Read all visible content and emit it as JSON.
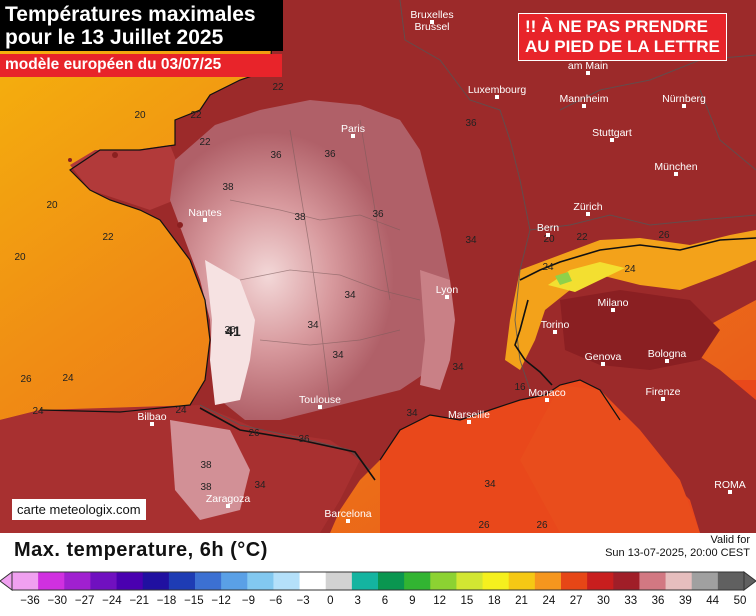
{
  "title_line1": "Températures maximales",
  "title_line2": "pour le 13 Juillet 2025",
  "subtitle": "modèle européen du 03/07/25",
  "warning_line1": "!! À NE PAS PRENDRE",
  "warning_line2": "AU PIED DE LA LETTRE",
  "credit": "carte meteologix.com",
  "legend_title": "Max. temperature, 6h (°C)",
  "valid_label": "Valid for",
  "valid_time": "Sun 13-07-2025, 20:00 CEST",
  "scale_ticks": [
    "-36",
    "-30",
    "-27",
    "-24",
    "-21",
    "-18",
    "-15",
    "-12",
    "-9",
    "-6",
    "-3",
    "0",
    "3",
    "6",
    "9",
    "12",
    "15",
    "18",
    "21",
    "24",
    "27",
    "30",
    "33",
    "36",
    "39",
    "44",
    "50"
  ],
  "cities": [
    {
      "name": "Bruxelles"
    },
    {
      "name": "Brussel"
    },
    {
      "name": "Luxembourg"
    },
    {
      "name": "Paris"
    },
    {
      "name": "Nantes"
    },
    {
      "name": "Lyon"
    },
    {
      "name": "Toulouse"
    },
    {
      "name": "Marseille"
    },
    {
      "name": "Monaco"
    },
    {
      "name": "Bilbao"
    },
    {
      "name": "Zaragoza"
    },
    {
      "name": "Barcelona"
    },
    {
      "name": "Bern"
    },
    {
      "name": "Zürich"
    },
    {
      "name": "Stuttgart"
    },
    {
      "name": "Mannheim"
    },
    {
      "name": "Nürnberg"
    },
    {
      "name": "München"
    },
    {
      "name": "am Main"
    },
    {
      "name": "Milano"
    },
    {
      "name": "Torino"
    },
    {
      "name": "Genova"
    },
    {
      "name": "Bologna"
    },
    {
      "name": "Firenze"
    },
    {
      "name": "ROMA"
    }
  ],
  "isotherm_labels": [
    "22",
    "20",
    "20",
    "20",
    "22",
    "22",
    "22",
    "36",
    "38",
    "36",
    "36",
    "38",
    "36",
    "34",
    "34",
    "34",
    "34",
    "34",
    "34",
    "36",
    "41",
    "26",
    "24",
    "24",
    "26",
    "24",
    "38",
    "38",
    "34",
    "36",
    "34",
    "26",
    "26",
    "16",
    "20",
    "24",
    "24",
    "26",
    "22"
  ],
  "colors": {
    "warning_bg": "#e8242a",
    "title_bg": "#000000",
    "sea": "#e8541c"
  }
}
